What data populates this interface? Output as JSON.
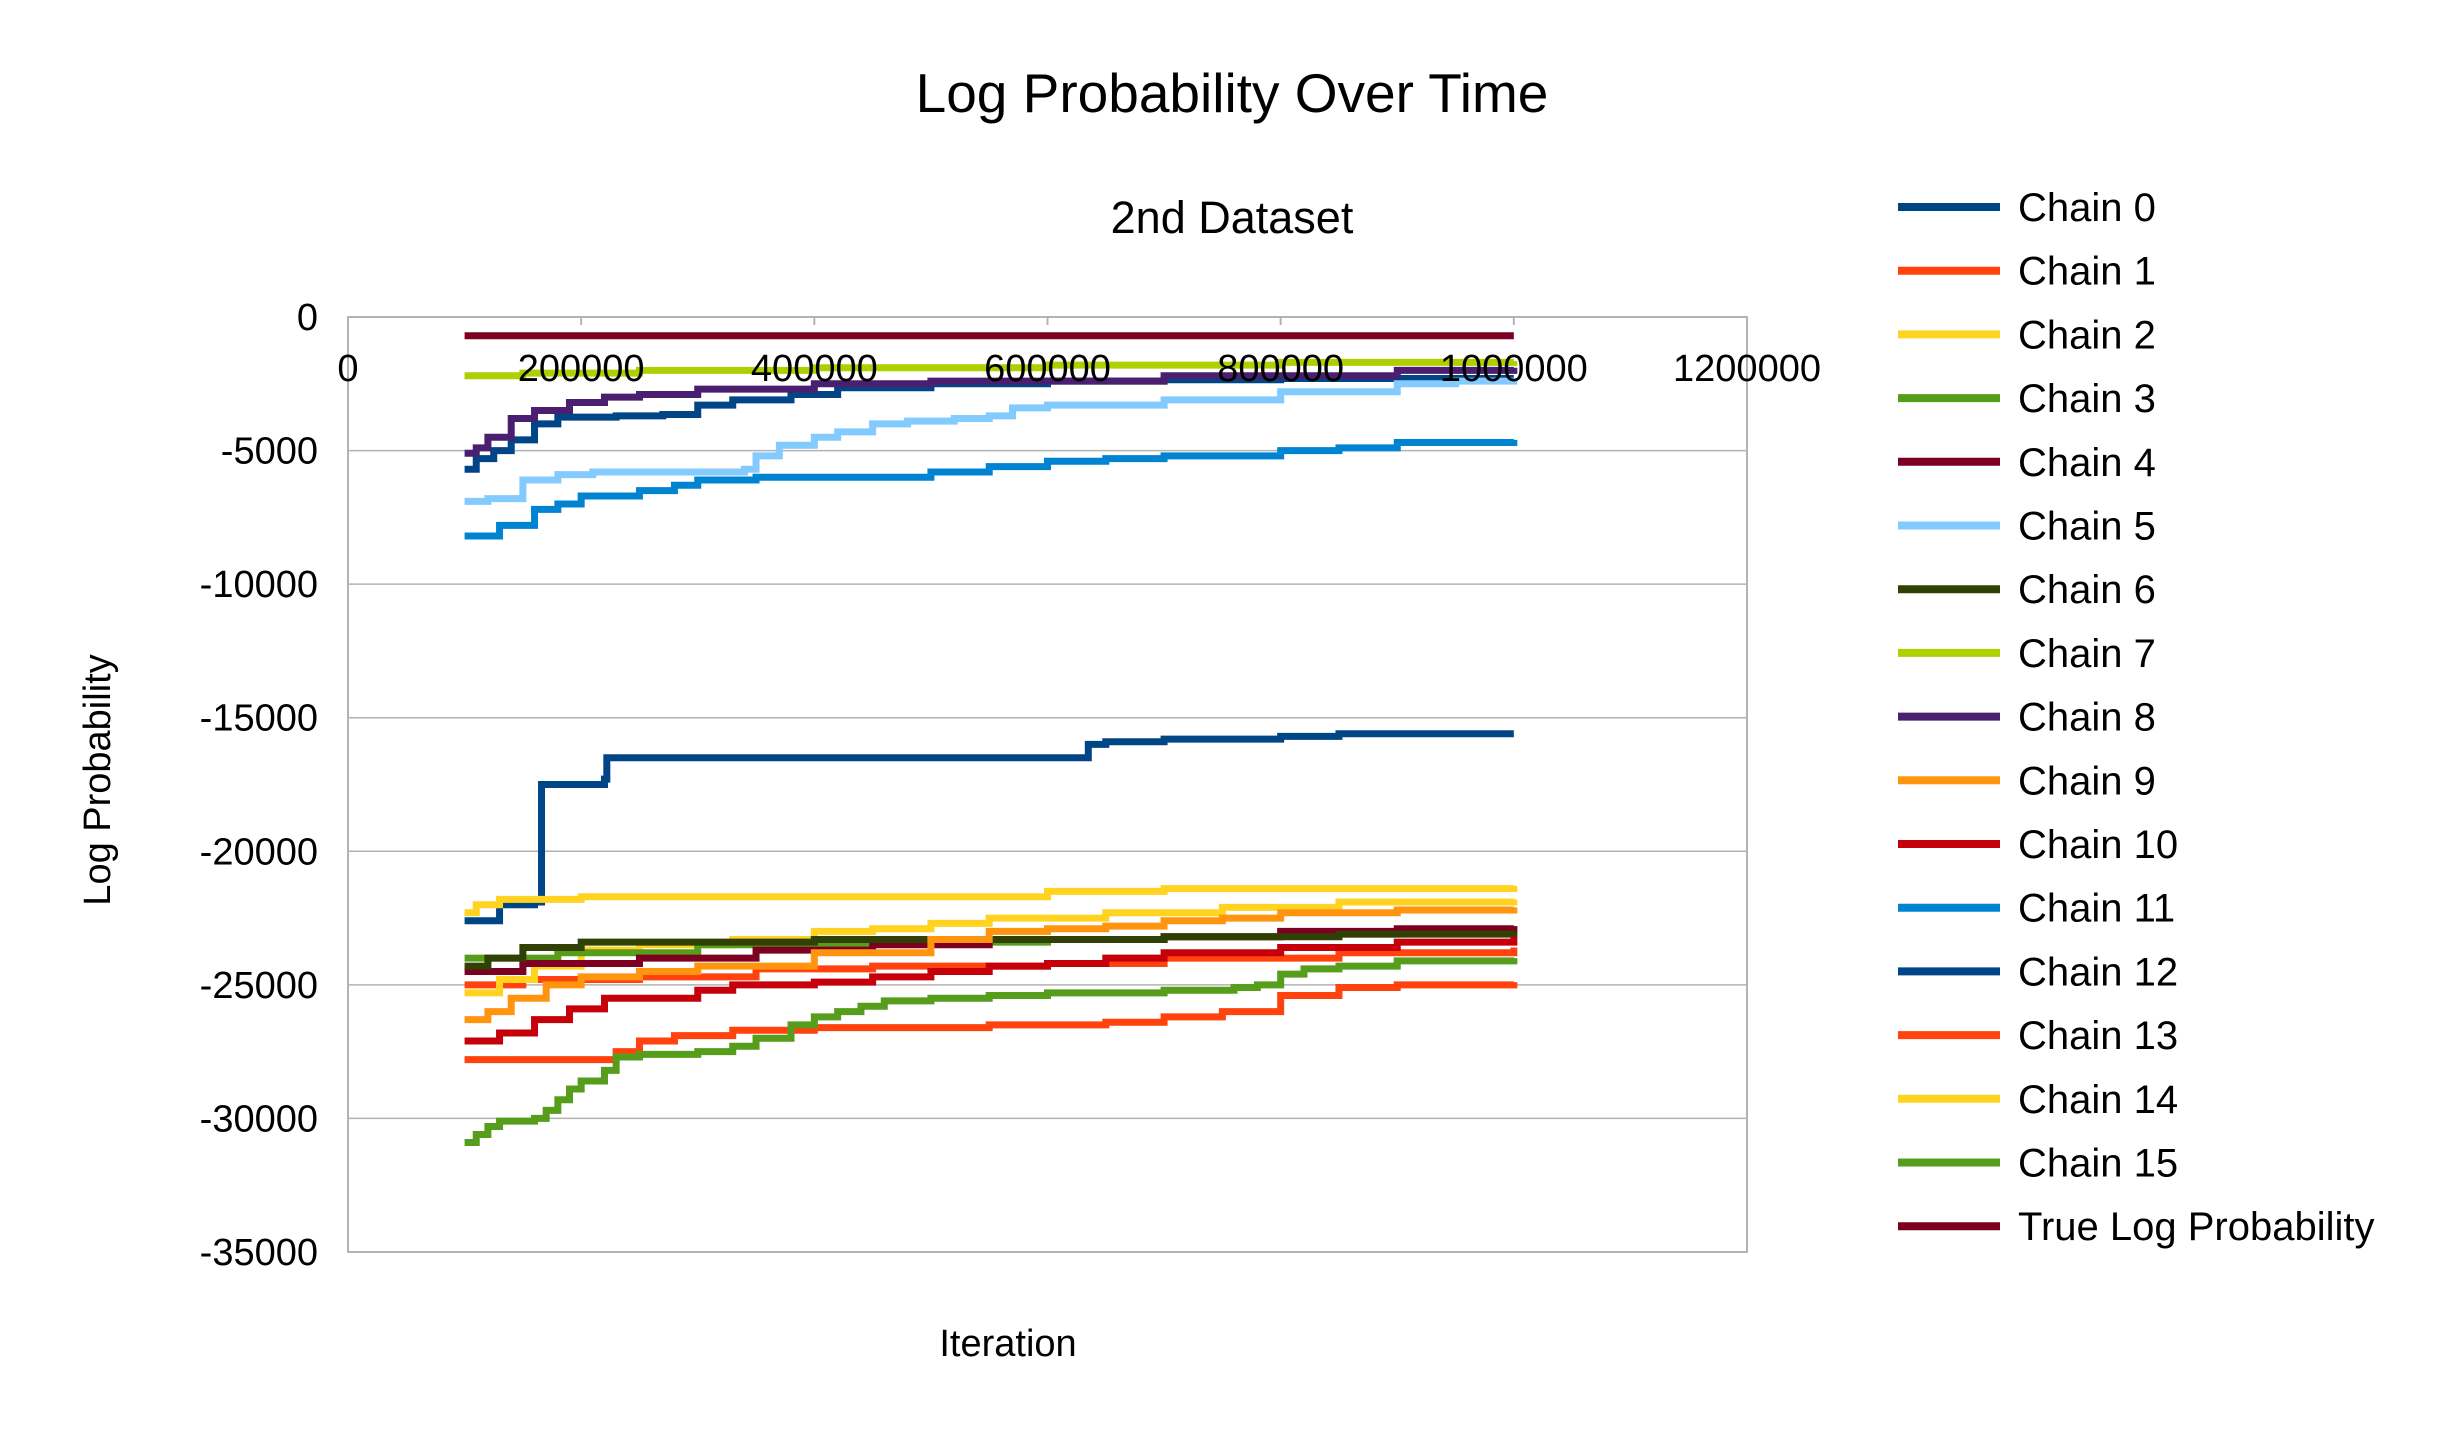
{
  "chart_data": {
    "type": "line",
    "title": "Log Probability Over Time",
    "subtitle": "2nd Dataset",
    "xlabel": "Iteration",
    "ylabel": "Log Probability",
    "xlim": [
      0,
      1200000
    ],
    "ylim": [
      -35000,
      0
    ],
    "x_ticks": [
      0,
      200000,
      400000,
      600000,
      800000,
      1000000,
      1200000
    ],
    "y_ticks": [
      0,
      -5000,
      -10000,
      -15000,
      -20000,
      -25000,
      -30000,
      -35000
    ],
    "x_tick_labels": [
      "0",
      "200000",
      "400000",
      "600000",
      "800000",
      "1000000",
      "1200000"
    ],
    "y_tick_labels": [
      "0",
      "-5000",
      "-10000",
      "-15000",
      "-20000",
      "-25000",
      "-30000",
      "-35000"
    ],
    "x_axis_position": "top (crosses y at 0)",
    "grid": "horizontal major gridlines",
    "legend_position": "right",
    "series": [
      {
        "name": "Chain 0",
        "color": "#004586",
        "points": [
          [
            100000,
            -5700
          ],
          [
            110000,
            -5300
          ],
          [
            125000,
            -5000
          ],
          [
            140000,
            -4600
          ],
          [
            160000,
            -4000
          ],
          [
            180000,
            -3750
          ],
          [
            230000,
            -3700
          ],
          [
            270000,
            -3650
          ],
          [
            300000,
            -3300
          ],
          [
            330000,
            -3100
          ],
          [
            380000,
            -2900
          ],
          [
            420000,
            -2650
          ],
          [
            500000,
            -2500
          ],
          [
            600000,
            -2400
          ],
          [
            700000,
            -2350
          ],
          [
            800000,
            -2300
          ],
          [
            1000000,
            -2300
          ]
        ]
      },
      {
        "name": "Chain 1",
        "color": "#ff420e",
        "points": [
          [
            100000,
            -25000
          ],
          [
            150000,
            -24800
          ],
          [
            250000,
            -24700
          ],
          [
            350000,
            -24400
          ],
          [
            450000,
            -24300
          ],
          [
            600000,
            -24200
          ],
          [
            700000,
            -24000
          ],
          [
            850000,
            -23800
          ],
          [
            1000000,
            -23600
          ]
        ]
      },
      {
        "name": "Chain 2",
        "color": "#ffd320",
        "points": [
          [
            100000,
            -25300
          ],
          [
            130000,
            -24800
          ],
          [
            160000,
            -24300
          ],
          [
            200000,
            -23700
          ],
          [
            250000,
            -23500
          ],
          [
            330000,
            -23300
          ],
          [
            400000,
            -23000
          ],
          [
            450000,
            -22900
          ],
          [
            500000,
            -22700
          ],
          [
            550000,
            -22500
          ],
          [
            650000,
            -22300
          ],
          [
            750000,
            -22100
          ],
          [
            850000,
            -21900
          ],
          [
            1000000,
            -21800
          ]
        ]
      },
      {
        "name": "Chain 3",
        "color": "#579d1c",
        "points": [
          [
            100000,
            -24000
          ],
          [
            180000,
            -23800
          ],
          [
            300000,
            -23500
          ],
          [
            450000,
            -23400
          ],
          [
            600000,
            -23300
          ],
          [
            700000,
            -23200
          ],
          [
            800000,
            -23100
          ],
          [
            900000,
            -23000
          ],
          [
            1000000,
            -22800
          ]
        ]
      },
      {
        "name": "Chain 4",
        "color": "#7e0021",
        "points": [
          [
            100000,
            -24500
          ],
          [
            150000,
            -24200
          ],
          [
            250000,
            -24000
          ],
          [
            350000,
            -23700
          ],
          [
            450000,
            -23500
          ],
          [
            550000,
            -23300
          ],
          [
            700000,
            -23200
          ],
          [
            800000,
            -23000
          ],
          [
            900000,
            -22900
          ],
          [
            1000000,
            -22800
          ]
        ]
      },
      {
        "name": "Chain 5",
        "color": "#83caff",
        "points": [
          [
            100000,
            -6900
          ],
          [
            120000,
            -6800
          ],
          [
            150000,
            -6100
          ],
          [
            180000,
            -5900
          ],
          [
            210000,
            -5800
          ],
          [
            320000,
            -5800
          ],
          [
            340000,
            -5700
          ],
          [
            350000,
            -5200
          ],
          [
            370000,
            -4800
          ],
          [
            400000,
            -4500
          ],
          [
            420000,
            -4300
          ],
          [
            450000,
            -4000
          ],
          [
            480000,
            -3900
          ],
          [
            520000,
            -3800
          ],
          [
            550000,
            -3700
          ],
          [
            570000,
            -3400
          ],
          [
            600000,
            -3300
          ],
          [
            700000,
            -3100
          ],
          [
            800000,
            -2800
          ],
          [
            900000,
            -2500
          ],
          [
            950000,
            -2400
          ],
          [
            1000000,
            -2300
          ]
        ]
      },
      {
        "name": "Chain 6",
        "color": "#314004",
        "points": [
          [
            100000,
            -24300
          ],
          [
            120000,
            -24000
          ],
          [
            150000,
            -23600
          ],
          [
            200000,
            -23400
          ],
          [
            400000,
            -23300
          ],
          [
            700000,
            -23200
          ],
          [
            850000,
            -23100
          ],
          [
            1000000,
            -23000
          ]
        ]
      },
      {
        "name": "Chain 7",
        "color": "#aecf00",
        "points": [
          [
            100000,
            -2200
          ],
          [
            150000,
            -2100
          ],
          [
            250000,
            -2000
          ],
          [
            400000,
            -1900
          ],
          [
            600000,
            -1800
          ],
          [
            800000,
            -1700
          ],
          [
            1000000,
            -1650
          ]
        ]
      },
      {
        "name": "Chain 8",
        "color": "#4b1f6f",
        "points": [
          [
            100000,
            -5100
          ],
          [
            110000,
            -4900
          ],
          [
            120000,
            -4500
          ],
          [
            140000,
            -3800
          ],
          [
            160000,
            -3500
          ],
          [
            190000,
            -3200
          ],
          [
            220000,
            -3000
          ],
          [
            250000,
            -2900
          ],
          [
            300000,
            -2700
          ],
          [
            400000,
            -2500
          ],
          [
            500000,
            -2400
          ],
          [
            700000,
            -2200
          ],
          [
            900000,
            -2000
          ],
          [
            1000000,
            -1900
          ]
        ]
      },
      {
        "name": "Chain 9",
        "color": "#ff950e",
        "points": [
          [
            100000,
            -26300
          ],
          [
            120000,
            -26000
          ],
          [
            140000,
            -25500
          ],
          [
            170000,
            -25000
          ],
          [
            200000,
            -24700
          ],
          [
            250000,
            -24500
          ],
          [
            300000,
            -24300
          ],
          [
            400000,
            -23800
          ],
          [
            500000,
            -23300
          ],
          [
            550000,
            -23000
          ],
          [
            600000,
            -22900
          ],
          [
            650000,
            -22800
          ],
          [
            700000,
            -22600
          ],
          [
            750000,
            -22500
          ],
          [
            800000,
            -22300
          ],
          [
            900000,
            -22200
          ],
          [
            1000000,
            -22100
          ]
        ]
      },
      {
        "name": "Chain 10",
        "color": "#c5000b",
        "points": [
          [
            100000,
            -27100
          ],
          [
            130000,
            -26800
          ],
          [
            160000,
            -26300
          ],
          [
            190000,
            -25900
          ],
          [
            220000,
            -25500
          ],
          [
            300000,
            -25200
          ],
          [
            330000,
            -25000
          ],
          [
            400000,
            -24900
          ],
          [
            450000,
            -24700
          ],
          [
            500000,
            -24500
          ],
          [
            550000,
            -24300
          ],
          [
            600000,
            -24200
          ],
          [
            650000,
            -24000
          ],
          [
            700000,
            -23800
          ],
          [
            800000,
            -23600
          ],
          [
            900000,
            -23400
          ],
          [
            1000000,
            -23200
          ]
        ]
      },
      {
        "name": "Chain 11",
        "color": "#0084d1",
        "points": [
          [
            100000,
            -8200
          ],
          [
            130000,
            -7800
          ],
          [
            160000,
            -7200
          ],
          [
            180000,
            -7000
          ],
          [
            200000,
            -6700
          ],
          [
            250000,
            -6500
          ],
          [
            280000,
            -6300
          ],
          [
            300000,
            -6100
          ],
          [
            350000,
            -6000
          ],
          [
            480000,
            -6000
          ],
          [
            500000,
            -5800
          ],
          [
            550000,
            -5600
          ],
          [
            600000,
            -5400
          ],
          [
            650000,
            -5300
          ],
          [
            700000,
            -5200
          ],
          [
            800000,
            -5000
          ],
          [
            850000,
            -4900
          ],
          [
            900000,
            -4700
          ],
          [
            1000000,
            -4600
          ]
        ]
      },
      {
        "name": "Chain 12",
        "color": "#004586",
        "points": [
          [
            100000,
            -22600
          ],
          [
            130000,
            -22000
          ],
          [
            160000,
            -21900
          ],
          [
            164000,
            -21900
          ],
          [
            166000,
            -17500
          ],
          [
            190000,
            -17500
          ],
          [
            220000,
            -17300
          ],
          [
            222000,
            -16500
          ],
          [
            300000,
            -16500
          ],
          [
            500000,
            -16500
          ],
          [
            630000,
            -16500
          ],
          [
            635000,
            -16000
          ],
          [
            650000,
            -15900
          ],
          [
            700000,
            -15800
          ],
          [
            800000,
            -15700
          ],
          [
            850000,
            -15600
          ],
          [
            1000000,
            -15600
          ]
        ]
      },
      {
        "name": "Chain 13",
        "color": "#ff420e",
        "points": [
          [
            100000,
            -27800
          ],
          [
            220000,
            -27800
          ],
          [
            230000,
            -27500
          ],
          [
            250000,
            -27100
          ],
          [
            280000,
            -26900
          ],
          [
            330000,
            -26700
          ],
          [
            400000,
            -26600
          ],
          [
            550000,
            -26500
          ],
          [
            600000,
            -26500
          ],
          [
            650000,
            -26400
          ],
          [
            700000,
            -26200
          ],
          [
            750000,
            -26000
          ],
          [
            800000,
            -25400
          ],
          [
            850000,
            -25100
          ],
          [
            900000,
            -25000
          ],
          [
            1000000,
            -24900
          ]
        ]
      },
      {
        "name": "Chain 14",
        "color": "#ffd320",
        "points": [
          [
            100000,
            -22300
          ],
          [
            110000,
            -22000
          ],
          [
            130000,
            -21800
          ],
          [
            200000,
            -21700
          ],
          [
            500000,
            -21700
          ],
          [
            600000,
            -21500
          ],
          [
            700000,
            -21400
          ],
          [
            800000,
            -21400
          ],
          [
            1000000,
            -21300
          ]
        ]
      },
      {
        "name": "Chain 15",
        "color": "#579d1c",
        "points": [
          [
            100000,
            -30900
          ],
          [
            110000,
            -30600
          ],
          [
            120000,
            -30300
          ],
          [
            130000,
            -30100
          ],
          [
            160000,
            -30000
          ],
          [
            170000,
            -29700
          ],
          [
            180000,
            -29300
          ],
          [
            190000,
            -28900
          ],
          [
            200000,
            -28600
          ],
          [
            220000,
            -28200
          ],
          [
            230000,
            -27700
          ],
          [
            250000,
            -27600
          ],
          [
            300000,
            -27500
          ],
          [
            330000,
            -27300
          ],
          [
            350000,
            -27000
          ],
          [
            380000,
            -26500
          ],
          [
            400000,
            -26200
          ],
          [
            420000,
            -26000
          ],
          [
            440000,
            -25800
          ],
          [
            460000,
            -25600
          ],
          [
            500000,
            -25500
          ],
          [
            550000,
            -25400
          ],
          [
            600000,
            -25300
          ],
          [
            700000,
            -25200
          ],
          [
            760000,
            -25100
          ],
          [
            780000,
            -25000
          ],
          [
            800000,
            -24600
          ],
          [
            820000,
            -24400
          ],
          [
            850000,
            -24300
          ],
          [
            900000,
            -24100
          ],
          [
            1000000,
            -24000
          ]
        ]
      },
      {
        "name": "True Log Probability",
        "color": "#7e0021",
        "points": [
          [
            100000,
            -700
          ],
          [
            1000000,
            -700
          ]
        ]
      }
    ]
  }
}
